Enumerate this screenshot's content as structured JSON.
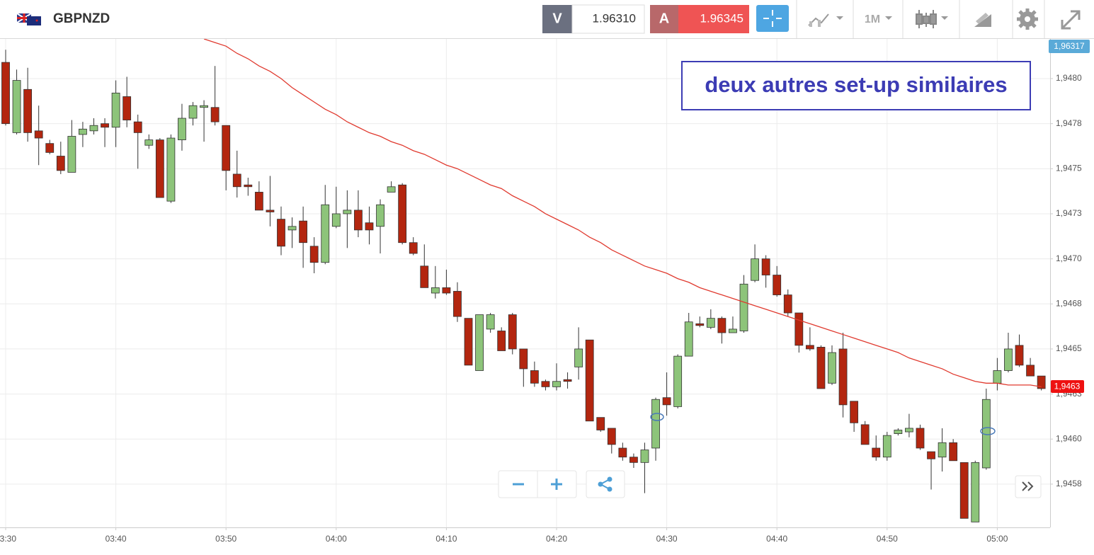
{
  "header": {
    "symbol": "GBPNZD",
    "bid_label": "V",
    "bid": "1.96310",
    "ask_label": "A",
    "ask": "1.96345",
    "timeframe": "1M"
  },
  "chart_data": {
    "type": "candlestick",
    "annotation": "deux autres set-up similaires",
    "top_price_label": "1,96317",
    "last_price_label": "1,9463",
    "up_color": "#8dc47a",
    "down_color": "#b3260f",
    "grid": true,
    "categories": [
      "03:30",
      null,
      null,
      null,
      null,
      null,
      null,
      null,
      null,
      null,
      "03:40",
      null,
      null,
      null,
      null,
      null,
      null,
      null,
      null,
      null,
      "03:50",
      null,
      null,
      null,
      null,
      null,
      null,
      null,
      null,
      null,
      "04:00",
      null,
      null,
      null,
      null,
      null,
      null,
      null,
      null,
      null,
      "04:10",
      null,
      null,
      null,
      null,
      null,
      null,
      null,
      null,
      null,
      "04:20",
      null,
      null,
      null,
      null,
      null,
      null,
      null,
      null,
      null,
      "04:30",
      null,
      null,
      null,
      null,
      null,
      null,
      null,
      null,
      null,
      "04:40",
      null,
      null,
      null,
      null,
      null,
      null,
      null,
      null,
      null,
      "04:50",
      null,
      null,
      null,
      null,
      null,
      null,
      null,
      null,
      null,
      "05:00",
      null,
      null,
      null,
      null
    ],
    "open": [
      1.94809,
      1.9477,
      1.94794,
      1.94771,
      1.94764,
      1.94757,
      1.94748,
      1.94769,
      1.94771,
      1.94775,
      1.94773,
      1.9479,
      1.94776,
      1.94763,
      1.94766,
      1.94732,
      1.94766,
      1.94778,
      1.94784,
      1.94784,
      1.94774,
      1.94747,
      1.94741,
      1.94737,
      1.94727,
      1.94722,
      1.94716,
      1.94721,
      1.94707,
      1.94698,
      1.94718,
      1.94725,
      1.94727,
      1.9472,
      1.94718,
      1.94737,
      1.94741,
      1.94709,
      1.94696,
      1.94681,
      1.94684,
      1.94682,
      1.94667,
      1.94638,
      1.94661,
      1.9466,
      1.94669,
      1.9465,
      1.94638,
      1.94632,
      1.94629,
      1.94633,
      1.9464,
      1.94655,
      1.94612,
      1.94606,
      1.94595,
      1.9459,
      1.94587,
      1.94595,
      1.94623,
      1.94618,
      1.94646,
      1.94664,
      1.94662,
      1.94667,
      1.94659,
      1.9466,
      1.94688,
      1.947,
      1.94691,
      1.9468,
      1.9467,
      1.94652,
      1.94651,
      1.94631,
      1.9465,
      1.94621,
      1.94608,
      1.94595,
      1.9459,
      1.94603,
      1.94604,
      1.94606,
      1.94593,
      1.9459,
      1.94598,
      1.94587,
      1.94554,
      1.94584,
      1.94631,
      1.94638,
      1.94652,
      1.94641,
      1.94635
    ],
    "high": [
      1.94816,
      1.94805,
      1.94806,
      1.94785,
      1.94766,
      1.94765,
      1.94777,
      1.94776,
      1.94778,
      1.94778,
      1.94799,
      1.94801,
      1.9478,
      1.94769,
      1.94767,
      1.94769,
      1.94786,
      1.94787,
      1.94788,
      1.94807,
      1.94774,
      1.9476,
      1.94745,
      1.94743,
      1.94746,
      1.94729,
      1.94723,
      1.94729,
      1.94712,
      1.94741,
      1.9474,
      1.94738,
      1.94738,
      1.94729,
      1.94733,
      1.94743,
      1.94742,
      1.94712,
      1.94708,
      1.94696,
      1.94694,
      1.94687,
      1.94667,
      1.94669,
      1.9467,
      1.94662,
      1.9467,
      1.9465,
      1.94643,
      1.94633,
      1.94642,
      1.94637,
      1.94662,
      1.94655,
      1.94612,
      1.94606,
      1.94598,
      1.94592,
      1.94598,
      1.94623,
      1.94637,
      1.94647,
      1.9467,
      1.94668,
      1.94672,
      1.94668,
      1.94668,
      1.94691,
      1.94708,
      1.94702,
      1.94696,
      1.94683,
      1.9467,
      1.94662,
      1.94652,
      1.94652,
      1.94659,
      1.94621,
      1.9461,
      1.94602,
      1.94604,
      1.94606,
      1.94614,
      1.94608,
      1.94593,
      1.94606,
      1.946,
      1.94587,
      1.94588,
      1.94628,
      1.94645,
      1.94659,
      1.94658,
      1.94645,
      1.94635
    ],
    "low": [
      1.94774,
      1.94769,
      1.94765,
      1.94752,
      1.94758,
      1.94747,
      1.94748,
      1.94762,
      1.94769,
      1.94762,
      1.94762,
      1.94773,
      1.9475,
      1.94761,
      1.94734,
      1.94731,
      1.9476,
      1.94774,
      1.94765,
      1.94774,
      1.94738,
      1.94734,
      1.94735,
      1.94727,
      1.94718,
      1.94702,
      1.94706,
      1.94695,
      1.94692,
      1.94697,
      1.94717,
      1.94706,
      1.94712,
      1.94708,
      1.94703,
      1.94737,
      1.94708,
      1.94702,
      1.94684,
      1.94678,
      1.9468,
      1.94665,
      1.94641,
      1.94638,
      1.94659,
      1.94649,
      1.94647,
      1.94629,
      1.94629,
      1.94627,
      1.94627,
      1.94628,
      1.94633,
      1.9461,
      1.94604,
      1.94592,
      1.94588,
      1.94584,
      1.9457,
      1.94588,
      1.94613,
      1.94617,
      1.94646,
      1.94662,
      1.94661,
      1.94653,
      1.94659,
      1.94659,
      1.94687,
      1.94684,
      1.94679,
      1.94668,
      1.94648,
      1.94649,
      1.94628,
      1.9463,
      1.94612,
      1.94604,
      1.94597,
      1.94588,
      1.94588,
      1.94602,
      1.94601,
      1.94594,
      1.94572,
      1.94582,
      1.94588,
      1.94556,
      1.94554,
      1.94583,
      1.94627,
      1.94637,
      1.9464,
      1.94635,
      1.94627
    ],
    "close": [
      1.94775,
      1.94799,
      1.9477,
      1.94767,
      1.94759,
      1.94749,
      1.94768,
      1.94772,
      1.94774,
      1.94773,
      1.94792,
      1.94777,
      1.9477,
      1.94766,
      1.94734,
      1.94767,
      1.94778,
      1.94785,
      1.94785,
      1.94776,
      1.94749,
      1.9474,
      1.9474,
      1.94727,
      1.94726,
      1.94707,
      1.94718,
      1.94709,
      1.94698,
      1.9473,
      1.94725,
      1.94727,
      1.94716,
      1.94716,
      1.9473,
      1.9474,
      1.94709,
      1.94703,
      1.94684,
      1.94684,
      1.94681,
      1.94668,
      1.94641,
      1.94669,
      1.94669,
      1.94649,
      1.9465,
      1.94639,
      1.94631,
      1.94629,
      1.94632,
      1.94632,
      1.9465,
      1.9461,
      1.94605,
      1.94597,
      1.9459,
      1.94587,
      1.94594,
      1.94622,
      1.94619,
      1.94646,
      1.94665,
      1.94663,
      1.94667,
      1.94659,
      1.94661,
      1.94686,
      1.947,
      1.94691,
      1.9468,
      1.9467,
      1.94652,
      1.9465,
      1.94628,
      1.94648,
      1.94619,
      1.94609,
      1.94597,
      1.9459,
      1.94602,
      1.94605,
      1.94606,
      1.94595,
      1.94589,
      1.94598,
      1.94588,
      1.94556,
      1.94587,
      1.94622,
      1.94638,
      1.9465,
      1.94641,
      1.94635,
      1.94628
    ],
    "overlay": {
      "type": "line",
      "color": "#e03a2f",
      "values": [
        null,
        null,
        null,
        null,
        null,
        null,
        null,
        null,
        null,
        null,
        null,
        null,
        null,
        null,
        null,
        null,
        null,
        null,
        1.94822,
        1.9482,
        1.94818,
        1.94814,
        1.94811,
        1.94807,
        1.94804,
        1.948,
        1.94795,
        1.94791,
        1.94787,
        1.94783,
        1.9478,
        1.94776,
        1.94773,
        1.9477,
        1.94768,
        1.94765,
        1.94763,
        1.9476,
        1.94758,
        1.94755,
        1.94752,
        1.9475,
        1.94747,
        1.94744,
        1.94741,
        1.94739,
        1.94735,
        1.94732,
        1.94729,
        1.94725,
        1.94722,
        1.94719,
        1.94716,
        1.94712,
        1.94709,
        1.94705,
        1.94702,
        1.94699,
        1.94696,
        1.94694,
        1.94692,
        1.94689,
        1.94687,
        1.94684,
        1.94682,
        1.9468,
        1.94678,
        1.94676,
        1.94674,
        1.94672,
        1.9467,
        1.94668,
        1.94666,
        1.94664,
        1.94662,
        1.9466,
        1.94658,
        1.94656,
        1.94654,
        1.94652,
        1.9465,
        1.94648,
        1.94645,
        1.94643,
        1.94641,
        1.94639,
        1.94636,
        1.94634,
        1.94632,
        1.94631,
        1.94631,
        1.9463,
        1.9463,
        1.9463,
        1.94629
      ]
    },
    "ylim": [
      1.94551,
      1.94822
    ],
    "yticks": [
      {
        "value": 1.94575,
        "label": "1,9458"
      },
      {
        "value": 1.946,
        "label": "1,9460"
      },
      {
        "value": 1.94625,
        "label": "1,9463"
      },
      {
        "value": 1.9465,
        "label": "1,9465"
      },
      {
        "value": 1.94675,
        "label": "1,9468"
      },
      {
        "value": 1.947,
        "label": "1,9470"
      },
      {
        "value": 1.94725,
        "label": "1,9473"
      },
      {
        "value": 1.9475,
        "label": "1,9475"
      },
      {
        "value": 1.94775,
        "label": "1,9478"
      },
      {
        "value": 1.948,
        "label": "1,9480"
      }
    ]
  }
}
